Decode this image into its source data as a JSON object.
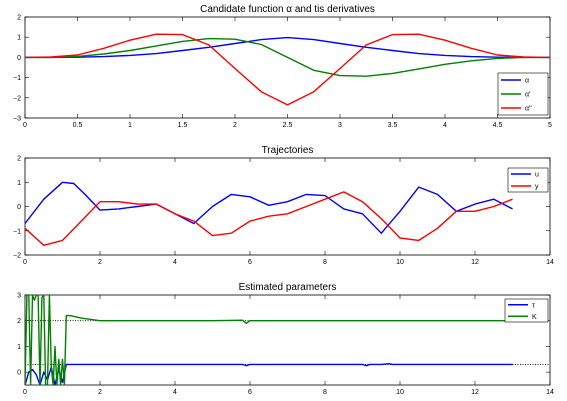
{
  "chart_data": [
    {
      "type": "line",
      "title": "Candidate function α and tis derivatives",
      "xlabel": "",
      "ylabel": "",
      "xlim": [
        0,
        5
      ],
      "ylim": [
        -3,
        2
      ],
      "xticks": [
        0,
        0.5,
        1,
        1.5,
        2,
        2.5,
        3,
        3.5,
        4,
        4.5,
        5
      ],
      "xtick_labels": [
        "0",
        "0.5",
        "1",
        "1.5",
        "2",
        "2.5",
        "3",
        "3.5",
        "4",
        "4.5",
        "5"
      ],
      "yticks": [
        -3,
        -2,
        -1,
        0,
        1,
        2
      ],
      "ytick_labels": [
        "−3",
        "−2",
        "−1",
        "0",
        "1",
        "2"
      ],
      "grid": false,
      "legend_position": "bottom-right",
      "series": [
        {
          "name": "α",
          "color": "#0000ff",
          "x": [
            0,
            0.25,
            0.5,
            0.75,
            1,
            1.25,
            1.5,
            1.75,
            2,
            2.25,
            2.5,
            2.75,
            3,
            3.25,
            3.5,
            3.75,
            4,
            4.25,
            4.5,
            4.75,
            5
          ],
          "y": [
            0,
            0,
            0.01,
            0.04,
            0.1,
            0.19,
            0.34,
            0.5,
            0.69,
            0.88,
            0.98,
            0.88,
            0.69,
            0.5,
            0.34,
            0.19,
            0.1,
            0.04,
            0.01,
            0,
            0
          ]
        },
        {
          "name": "α'",
          "color": "#008000",
          "x": [
            0,
            0.25,
            0.5,
            0.75,
            1,
            1.25,
            1.5,
            1.75,
            2,
            2.25,
            2.5,
            2.75,
            3,
            3.25,
            3.5,
            3.75,
            4,
            4.25,
            4.5,
            4.75,
            5
          ],
          "y": [
            0,
            0,
            0.05,
            0.17,
            0.34,
            0.57,
            0.79,
            0.93,
            0.9,
            0.64,
            0,
            -0.64,
            -0.9,
            -0.93,
            -0.79,
            -0.57,
            -0.34,
            -0.17,
            -0.05,
            0,
            0
          ]
        },
        {
          "name": "α''",
          "color": "#ff0000",
          "x": [
            0,
            0.25,
            0.5,
            0.75,
            1,
            1.25,
            1.5,
            1.75,
            2,
            2.25,
            2.5,
            2.75,
            3,
            3.25,
            3.5,
            3.75,
            4,
            4.25,
            4.5,
            4.75,
            5
          ],
          "y": [
            0,
            0.02,
            0.12,
            0.45,
            0.85,
            1.15,
            1.13,
            0.62,
            -0.55,
            -1.7,
            -2.35,
            -1.7,
            -0.55,
            0.62,
            1.13,
            1.15,
            0.85,
            0.45,
            0.12,
            0.02,
            0
          ]
        }
      ]
    },
    {
      "type": "line",
      "title": "Trajectories",
      "xlabel": "",
      "ylabel": "",
      "xlim": [
        0,
        14
      ],
      "ylim": [
        -2,
        2
      ],
      "xticks": [
        0,
        2,
        4,
        6,
        8,
        10,
        12,
        14
      ],
      "xtick_labels": [
        "0",
        "2",
        "4",
        "6",
        "8",
        "10",
        "12",
        "14"
      ],
      "yticks": [
        -2,
        -1,
        0,
        1,
        2
      ],
      "ytick_labels": [
        "−2",
        "−1",
        "0",
        "1",
        "2"
      ],
      "grid": false,
      "legend_position": "top-right",
      "series": [
        {
          "name": "u",
          "color": "#0000ff",
          "x": [
            0,
            0.5,
            1,
            1.3,
            1.6,
            2,
            2.5,
            3,
            3.5,
            4,
            4.5,
            5,
            5.5,
            6,
            6.5,
            7,
            7.5,
            8,
            8.5,
            9,
            9.5,
            10,
            10.5,
            11,
            11.5,
            12,
            12.5,
            13
          ],
          "y": [
            -0.7,
            0.3,
            1.0,
            0.95,
            0.5,
            -0.15,
            -0.1,
            0.0,
            0.1,
            -0.3,
            -0.7,
            0.0,
            0.5,
            0.4,
            0.05,
            0.2,
            0.5,
            0.45,
            -0.1,
            -0.3,
            -1.1,
            -0.2,
            0.8,
            0.5,
            -0.2,
            0.1,
            0.3,
            -0.1
          ]
        },
        {
          "name": "y",
          "color": "#ff0000",
          "x": [
            0,
            0.5,
            1,
            1.5,
            2,
            2.5,
            3,
            3.5,
            4,
            4.5,
            5,
            5.5,
            6,
            6.5,
            7,
            7.5,
            8,
            8.5,
            9,
            9.5,
            10,
            10.5,
            11,
            11.5,
            12,
            12.5,
            13
          ],
          "y": [
            -0.9,
            -1.6,
            -1.4,
            -0.6,
            0.2,
            0.2,
            0.1,
            0.1,
            -0.3,
            -0.6,
            -1.2,
            -1.1,
            -0.6,
            -0.4,
            -0.3,
            0.0,
            0.3,
            0.6,
            0.2,
            -0.5,
            -1.3,
            -1.4,
            -0.9,
            -0.2,
            -0.2,
            0.0,
            0.3
          ]
        }
      ]
    },
    {
      "type": "line",
      "title": "Estimated parameters",
      "xlabel": "",
      "ylabel": "",
      "xlim": [
        0,
        14
      ],
      "ylim": [
        -0.5,
        3
      ],
      "xticks": [
        0,
        2,
        4,
        6,
        8,
        10,
        12,
        14
      ],
      "xtick_labels": [
        "0",
        "2",
        "4",
        "6",
        "8",
        "10",
        "12",
        "14"
      ],
      "yticks": [
        0,
        1,
        2,
        3
      ],
      "ytick_labels": [
        "0",
        "1",
        "2",
        "3"
      ],
      "grid": false,
      "legend_position": "top-right",
      "reference_lines": [
        {
          "y": 2,
          "style": "dotted",
          "color": "#000000"
        },
        {
          "y": 0.3,
          "style": "dotted",
          "color": "#000000"
        }
      ],
      "series": [
        {
          "name": "τ",
          "color": "#0000ff",
          "x": [
            0,
            0.1,
            0.2,
            0.3,
            0.4,
            0.5,
            0.6,
            0.7,
            0.8,
            0.9,
            1.0,
            1.1,
            1.2,
            2,
            3,
            4,
            5,
            5.8,
            5.9,
            6,
            7,
            8,
            9,
            9.1,
            9.2,
            9.5,
            9.7,
            9.8,
            10,
            11,
            12,
            13
          ],
          "y": [
            -0.5,
            0.0,
            0.1,
            -0.1,
            -0.5,
            0.0,
            -0.3,
            0.2,
            -0.5,
            0.1,
            -0.4,
            0.3,
            0.3,
            0.3,
            0.3,
            0.3,
            0.3,
            0.3,
            0.25,
            0.3,
            0.3,
            0.3,
            0.3,
            0.25,
            0.3,
            0.3,
            0.33,
            0.3,
            0.3,
            0.3,
            0.3,
            0.3
          ]
        },
        {
          "name": "K",
          "color": "#008000",
          "x": [
            0,
            0.05,
            0.1,
            0.15,
            0.2,
            0.25,
            0.3,
            0.35,
            0.4,
            0.45,
            0.5,
            0.55,
            0.6,
            0.65,
            0.7,
            0.75,
            0.8,
            0.85,
            0.9,
            0.95,
            1.0,
            1.05,
            1.1,
            1.2,
            1.5,
            2,
            3,
            4,
            5,
            5.8,
            5.9,
            6,
            7,
            8,
            9,
            10,
            11,
            12,
            13
          ],
          "y": [
            -0.5,
            3,
            3,
            -0.5,
            3,
            2.8,
            3,
            3,
            -0.5,
            2.9,
            3,
            -0.5,
            -0.5,
            3,
            0.2,
            -0.5,
            1.0,
            -0.5,
            0.5,
            -0.5,
            0.5,
            -0.5,
            2.2,
            2.2,
            2.1,
            2.0,
            2.0,
            2.0,
            2.0,
            2.02,
            1.9,
            2.0,
            2.0,
            2.0,
            2.0,
            2.0,
            2.0,
            2.0,
            2.0
          ]
        }
      ]
    }
  ]
}
